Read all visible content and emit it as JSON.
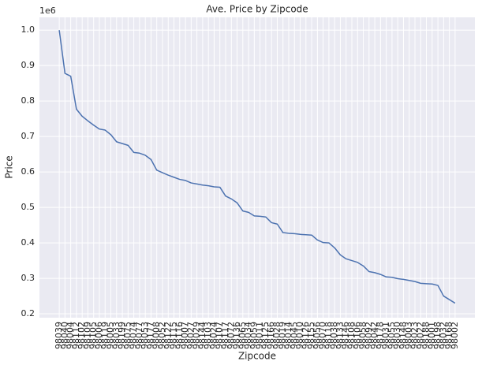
{
  "chart_data": {
    "type": "line",
    "title": "Ave. Price by Zipcode",
    "x_label": "Zipcode",
    "y_label": "Price",
    "y_offset_label": "1e6",
    "categories": [
      "98039",
      "98040",
      "98004",
      "98112",
      "98102",
      "98109",
      "98105",
      "98006",
      "98119",
      "98005",
      "98033",
      "98199",
      "98075",
      "98074",
      "98077",
      "98053",
      "98177",
      "98008",
      "98052",
      "98122",
      "98115",
      "98116",
      "98007",
      "98027",
      "98029",
      "98144",
      "98103",
      "98024",
      "98107",
      "98117",
      "98072",
      "98136",
      "98065",
      "98034",
      "98059",
      "98011",
      "98125",
      "98166",
      "98028",
      "98019",
      "98014",
      "98045",
      "98010",
      "98126",
      "98155",
      "98056",
      "98070",
      "98118",
      "98038",
      "98133",
      "98146",
      "98108",
      "98106",
      "98058",
      "98092",
      "98042",
      "98178",
      "98031",
      "98055",
      "98030",
      "98148",
      "98003",
      "98023",
      "98022",
      "98188",
      "98001",
      "98198",
      "98032",
      "98168",
      "98002"
    ],
    "series": [
      {
        "name": "Price",
        "color": "#4c72b0",
        "values": [
          1000000,
          878000,
          870000,
          777000,
          757000,
          744000,
          732000,
          721000,
          718000,
          705000,
          685000,
          680000,
          675000,
          655000,
          653000,
          647000,
          635000,
          605000,
          598000,
          591000,
          585000,
          579000,
          576000,
          569000,
          566000,
          563000,
          561000,
          558000,
          557000,
          532000,
          524000,
          513000,
          490000,
          486000,
          476000,
          475000,
          473000,
          457000,
          453000,
          429000,
          427000,
          426000,
          424000,
          423000,
          422000,
          408000,
          401000,
          400000,
          386000,
          366000,
          355000,
          350000,
          345000,
          335000,
          319000,
          316000,
          311000,
          304000,
          303000,
          299000,
          297000,
          294000,
          291000,
          286000,
          285000,
          284000,
          280000,
          250000,
          240000,
          230000
        ]
      }
    ],
    "ylim": [
      189000,
      1036000
    ],
    "yticks": [
      {
        "value": 200000,
        "label": "0.2"
      },
      {
        "value": 300000,
        "label": "0.3"
      },
      {
        "value": 400000,
        "label": "0.4"
      },
      {
        "value": 500000,
        "label": "0.5"
      },
      {
        "value": 600000,
        "label": "0.6"
      },
      {
        "value": 700000,
        "label": "0.7"
      },
      {
        "value": 800000,
        "label": "0.8"
      },
      {
        "value": 900000,
        "label": "0.9"
      },
      {
        "value": 1000000,
        "label": "1.0"
      }
    ],
    "grid": true,
    "background": "#eaeaf2"
  }
}
